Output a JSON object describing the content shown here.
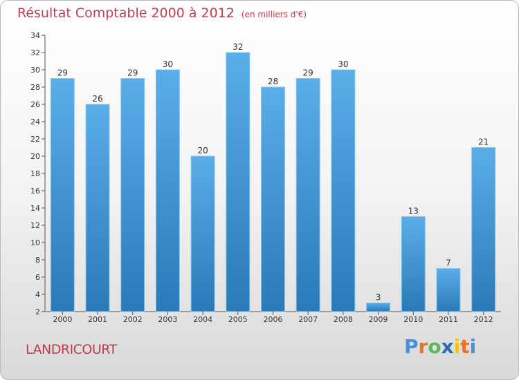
{
  "header": {
    "title": "Résultat Comptable 2000 à 2012",
    "unit": "(en milliers d'€)"
  },
  "footer": {
    "commune": "LANDRICOURT",
    "logo_letters": [
      "P",
      "r",
      "o",
      "x",
      "i",
      "t",
      "i"
    ]
  },
  "colors": {
    "bar_top": "#5aaee8",
    "bar_bottom": "#2a79b8",
    "title": "#c23a4e",
    "logo": [
      "#4a90d9",
      "#e8732c",
      "#5cb85c",
      "#2b6cb0",
      "#f0c419",
      "#e8732c",
      "#4a90d9"
    ]
  },
  "chart_data": {
    "type": "bar",
    "title": "Résultat Comptable 2000 à 2012",
    "xlabel": "",
    "ylabel": "",
    "categories": [
      "2000",
      "2001",
      "2002",
      "2003",
      "2004",
      "2005",
      "2006",
      "2007",
      "2008",
      "2009",
      "2010",
      "2011",
      "2012"
    ],
    "values": [
      29,
      26,
      29,
      30,
      20,
      32,
      28,
      29,
      30,
      3,
      13,
      7,
      21
    ],
    "ylim": [
      2,
      34
    ],
    "yticks": [
      2,
      4,
      6,
      8,
      10,
      12,
      14,
      16,
      18,
      20,
      22,
      24,
      26,
      28,
      30,
      32,
      34
    ],
    "grid": false,
    "legend": "none"
  }
}
